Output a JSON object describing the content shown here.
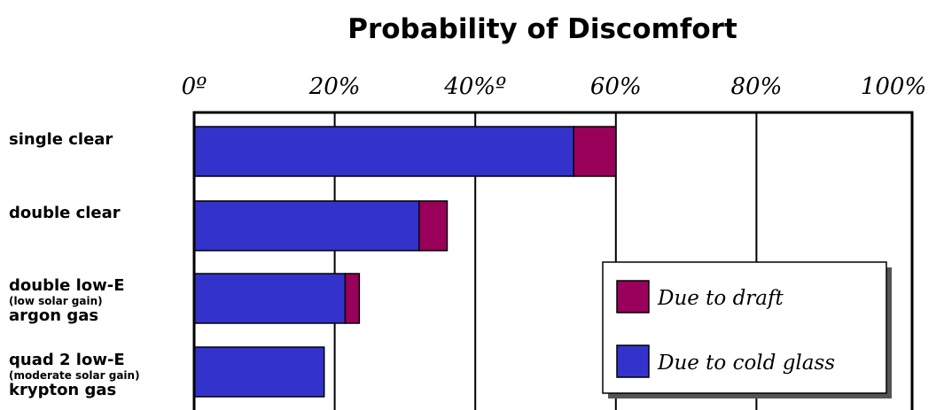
{
  "chart_data": {
    "type": "bar",
    "orientation": "horizontal",
    "stacked": true,
    "title": "Probability of Discomfort",
    "x_tick_labels": [
      "0º",
      "20%",
      "40%º",
      "60%",
      "80%",
      "100%"
    ],
    "xlim": [
      0,
      100
    ],
    "grid": true,
    "legend_position": "bottom-right",
    "categories": [
      {
        "lines": [
          "single clear"
        ]
      },
      {
        "lines": [
          "double clear"
        ]
      },
      {
        "lines": [
          "double low-E",
          "(low solar gain)",
          "argon gas"
        ]
      },
      {
        "lines": [
          "quad 2 low-E",
          "(moderate solar gain)",
          "krypton gas"
        ]
      }
    ],
    "series": [
      {
        "name": "Due to cold glass",
        "color": "#3333cc",
        "values": [
          54,
          32,
          21.5,
          18.5
        ]
      },
      {
        "name": "Due to draft",
        "color": "#99005a",
        "values": [
          6,
          4,
          2,
          0
        ]
      }
    ],
    "legend": [
      {
        "label": "Due to draft",
        "color": "#99005a"
      },
      {
        "label": "Due to cold glass",
        "color": "#3333cc"
      }
    ]
  }
}
